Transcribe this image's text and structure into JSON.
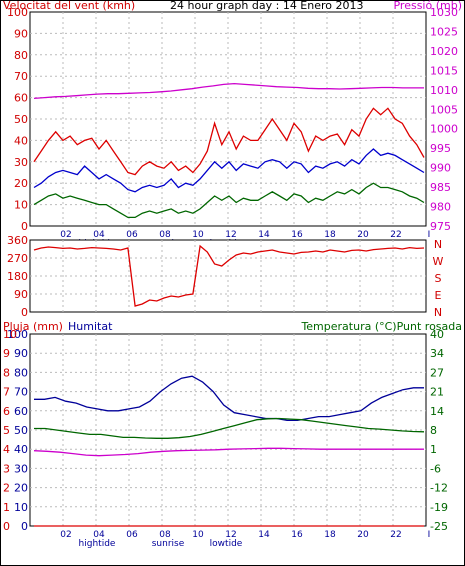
{
  "chart_data": [
    {
      "type": "line",
      "title": "24 hour graph day : 14 Enero 2013",
      "ylabel_left": "Velocitat del vent (kmh)",
      "ylabel_right": "Pressió (mb)",
      "ylim_left": [
        0,
        100
      ],
      "ylim_right": [
        975,
        1030
      ],
      "yticks_left": [
        "0",
        "10",
        "20",
        "30",
        "40",
        "50",
        "60",
        "70",
        "80",
        "90",
        "100"
      ],
      "yticks_right": [
        "975",
        "980",
        "985",
        "990",
        "995",
        "1000",
        "1005",
        "1010",
        "1015",
        "1020",
        "1025",
        "1030"
      ],
      "xticks": [
        "02",
        "04",
        "06",
        "08",
        "10",
        "12",
        "14",
        "16",
        "18",
        "20",
        "22",
        "I"
      ],
      "xtick_marks": [
        "hightide",
        "sunrise",
        "lowtide"
      ],
      "series": [
        {
          "color": "#dd0000",
          "axis": "left",
          "values": [
            30,
            35,
            40,
            44,
            40,
            42,
            38,
            40,
            41,
            36,
            40,
            35,
            30,
            25,
            24,
            28,
            30,
            28,
            27,
            30,
            26,
            28,
            25,
            29,
            35,
            48,
            38,
            44,
            36,
            42,
            40,
            40,
            45,
            50,
            45,
            40,
            48,
            44,
            35,
            42,
            40,
            42,
            43,
            38,
            45,
            42,
            50,
            55,
            52,
            55,
            50,
            48,
            42,
            38,
            32
          ]
        },
        {
          "color": "#0000cc",
          "axis": "left",
          "values": [
            18,
            20,
            23,
            25,
            26,
            25,
            24,
            28,
            25,
            22,
            24,
            22,
            20,
            17,
            16,
            18,
            19,
            18,
            19,
            22,
            18,
            20,
            19,
            22,
            26,
            30,
            27,
            30,
            26,
            29,
            28,
            27,
            30,
            31,
            30,
            27,
            30,
            29,
            25,
            28,
            27,
            29,
            30,
            28,
            31,
            29,
            33,
            36,
            33,
            34,
            33,
            31,
            29,
            27,
            25
          ]
        },
        {
          "color": "#006600",
          "axis": "left",
          "values": [
            10,
            12,
            14,
            15,
            13,
            14,
            13,
            12,
            11,
            10,
            10,
            8,
            6,
            4,
            4,
            6,
            7,
            6,
            7,
            8,
            6,
            7,
            6,
            8,
            11,
            14,
            12,
            14,
            11,
            13,
            12,
            12,
            14,
            16,
            14,
            12,
            15,
            14,
            11,
            13,
            12,
            14,
            16,
            15,
            17,
            15,
            18,
            20,
            18,
            18,
            17,
            16,
            14,
            13,
            11
          ]
        },
        {
          "color": "#cc00cc",
          "axis": "right",
          "values": [
            1007.8,
            1008,
            1008.2,
            1008.3,
            1008.5,
            1008.7,
            1008.9,
            1009,
            1009,
            1009.1,
            1009.2,
            1009.3,
            1009.5,
            1009.7,
            1010,
            1010.3,
            1010.7,
            1011,
            1011.4,
            1011.6,
            1011.4,
            1011.2,
            1011,
            1010.8,
            1010.7,
            1010.6,
            1010.4,
            1010.3,
            1010.3,
            1010.2,
            1010.3,
            1010.4,
            1010.5,
            1010.6,
            1010.6,
            1010.5,
            1010.5,
            1010.5
          ]
        }
      ]
    },
    {
      "type": "line",
      "ylim": [
        0,
        360
      ],
      "yticks": [
        "0",
        "90",
        "180",
        "270",
        "360"
      ],
      "compass": [
        "N",
        "W",
        "S",
        "E",
        "N"
      ],
      "series": [
        {
          "color": "#dd0000",
          "values": [
            310,
            320,
            325,
            322,
            318,
            320,
            315,
            318,
            322,
            320,
            318,
            315,
            310,
            320,
            30,
            40,
            60,
            55,
            70,
            80,
            75,
            85,
            90,
            330,
            300,
            240,
            230,
            260,
            285,
            295,
            290,
            300,
            305,
            310,
            300,
            295,
            290,
            298,
            300,
            305,
            300,
            310,
            305,
            300,
            308,
            310,
            305,
            312,
            315,
            318,
            320,
            315,
            322,
            318,
            320
          ]
        }
      ]
    },
    {
      "type": "line",
      "ylabel_left": "Pluja (mm)",
      "ylabel_left2": "Humitat",
      "ylabel_right": "Temperatura (°C)Punt rosada",
      "ylim_left": [
        0,
        100
      ],
      "ylim_right": [
        -25,
        40
      ],
      "yticks_left_rain": [
        "0",
        "1",
        "2",
        "3",
        "4",
        "5",
        "6",
        "7",
        "8",
        "9",
        "10"
      ],
      "yticks_left_hum": [
        "0",
        "10",
        "20",
        "30",
        "40",
        "50",
        "60",
        "70",
        "80",
        "90",
        "100"
      ],
      "yticks_right": [
        "-25",
        "-19",
        "-12",
        "-6",
        "1",
        "8",
        "14",
        "21",
        "27",
        "34",
        "40"
      ],
      "xticks": [
        "02",
        "04",
        "06",
        "08",
        "10",
        "12",
        "14",
        "16",
        "18",
        "20",
        "22",
        "I"
      ],
      "xtick_marks": [
        "hightide",
        "sunrise",
        "lowtide"
      ],
      "series": [
        {
          "color": "#000099",
          "axis": "left",
          "values": [
            66,
            66,
            67,
            65,
            64,
            62,
            61,
            60,
            60,
            61,
            62,
            65,
            70,
            74,
            77,
            78,
            75,
            70,
            63,
            59,
            58,
            57,
            56,
            56,
            55,
            55,
            56,
            57,
            57,
            58,
            59,
            60,
            64,
            67,
            69,
            71,
            72,
            72
          ]
        },
        {
          "color": "#006600",
          "axis": "right",
          "values": [
            8,
            8,
            7.5,
            7,
            6.5,
            6,
            6,
            5.5,
            5,
            5,
            4.8,
            4.7,
            4.7,
            4.9,
            5.3,
            6,
            7,
            8,
            9,
            10,
            11,
            11.3,
            11.4,
            11.2,
            11,
            10.5,
            10,
            9.5,
            9,
            8.5,
            8,
            7.8,
            7.5,
            7.2,
            7,
            6.9
          ]
        },
        {
          "color": "#cc00cc",
          "axis": "right",
          "values": [
            0.5,
            0.3,
            0,
            -0.5,
            -1,
            -1.2,
            -1,
            -0.8,
            -0.5,
            0,
            0.3,
            0.5,
            0.6,
            0.7,
            0.8,
            1,
            1.1,
            1.2,
            1.3,
            1.3,
            1.2,
            1.1,
            1,
            1,
            1,
            1,
            1,
            1,
            1,
            1,
            1
          ]
        },
        {
          "color": "#dd0000",
          "axis": "left",
          "values": [
            0,
            0
          ]
        }
      ]
    }
  ]
}
